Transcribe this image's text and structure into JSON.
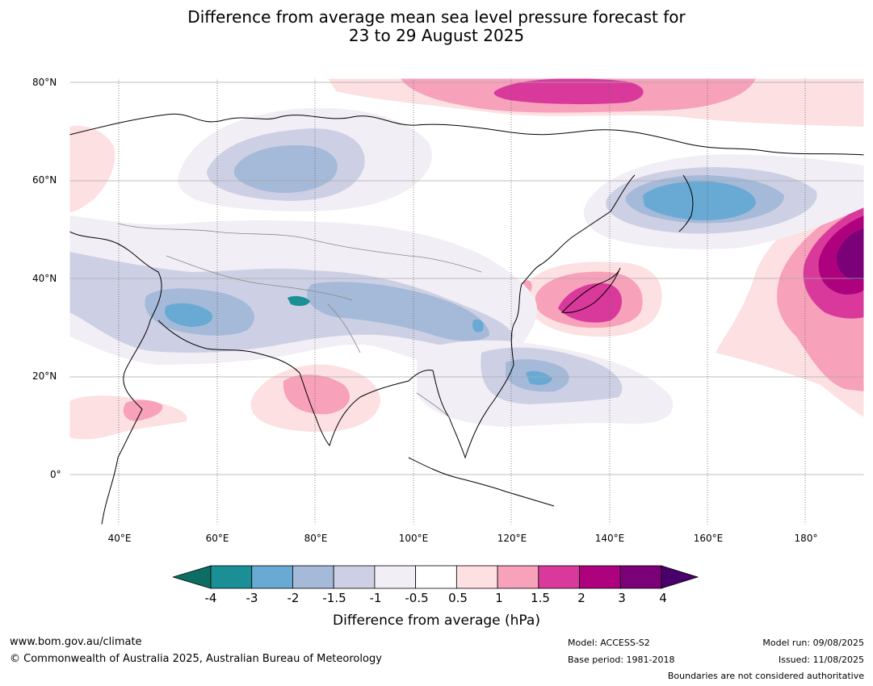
{
  "title": {
    "line1": "Difference from average mean sea level pressure forecast for",
    "line2": "23 to 29 August 2025"
  },
  "map": {
    "lat_labels": [
      "80°N",
      "60°N",
      "40°N",
      "20°N",
      "0°"
    ],
    "lon_labels": [
      "40°E",
      "60°E",
      "80°E",
      "100°E",
      "120°E",
      "140°E",
      "160°E",
      "180°"
    ],
    "colors": {
      "-4": "#1a9096",
      "-3": "#68aad3",
      "-2": "#a5b9d8",
      "-1.5": "#cdd0e4",
      "-1": "#f2eef5",
      "-0.5": "#ffffff",
      "0.5": "#fde0e1",
      "1": "#f7a1bb",
      "1.5": "#d8399b",
      "2": "#ae017e",
      "3": "#7a0177",
      "under": "#0c6e63",
      "over": "#49006a"
    }
  },
  "colorbar": {
    "labels": [
      "-4",
      "-3",
      "-2",
      "-1.5",
      "-1",
      "-0.5",
      "0.5",
      "1",
      "1.5",
      "2",
      "3",
      "4"
    ],
    "colors": [
      "#1a9096",
      "#68aad3",
      "#a5b9d8",
      "#cdd0e4",
      "#f2eef5",
      "#ffffff",
      "#fde0e1",
      "#f7a1bb",
      "#d8399b",
      "#ae017e",
      "#7a0177"
    ],
    "under_color": "#0c6e63",
    "over_color": "#49006a",
    "title": "Difference from average (hPa)"
  },
  "footer": {
    "website": "www.bom.gov.au/climate",
    "copyright": "© Commonwealth of Australia 2025, Australian Bureau of Meteorology",
    "model": "Model: ACCESS-S2",
    "base_period": "Base period: 1981-2018",
    "model_run": "Model run: 09/08/2025",
    "issued": "Issued: 11/08/2025",
    "disclaimer": "Boundaries are not considered authoritative"
  }
}
